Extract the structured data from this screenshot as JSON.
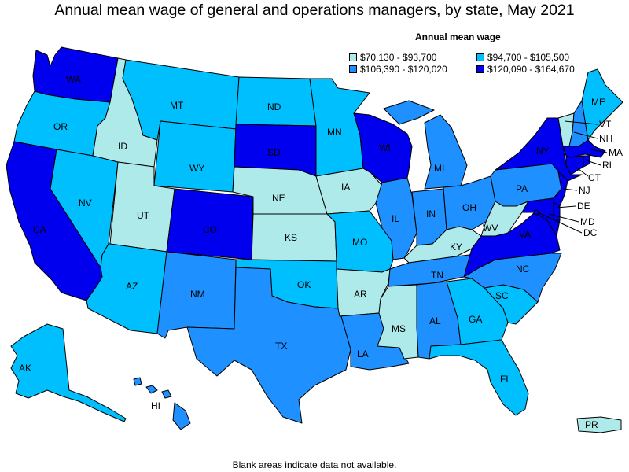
{
  "title": "Annual mean wage of general and operations managers, by state, May 2021",
  "legend": {
    "title": "Annual mean wage",
    "items": [
      {
        "label": "$70,130 - $93,700",
        "color": "#aeeaea"
      },
      {
        "label": "$94,700 - $105,500",
        "color": "#00bfff"
      },
      {
        "label": "$106,390 - $120,020",
        "color": "#1e90ff"
      },
      {
        "label": "$120,090 - $164,670",
        "color": "#0000ee"
      }
    ]
  },
  "footnote": "Blank areas indicate data not available.",
  "states": {
    "WA": {
      "label": "WA",
      "bin": 3
    },
    "OR": {
      "label": "OR",
      "bin": 1
    },
    "CA": {
      "label": "CA",
      "bin": 3
    },
    "ID": {
      "label": "ID",
      "bin": 0
    },
    "NV": {
      "label": "NV",
      "bin": 1
    },
    "MT": {
      "label": "MT",
      "bin": 1
    },
    "WY": {
      "label": "WY",
      "bin": 1
    },
    "UT": {
      "label": "UT",
      "bin": 0
    },
    "AZ": {
      "label": "AZ",
      "bin": 1
    },
    "CO": {
      "label": "CO",
      "bin": 3
    },
    "NM": {
      "label": "NM",
      "bin": 2
    },
    "ND": {
      "label": "ND",
      "bin": 1
    },
    "SD": {
      "label": "SD",
      "bin": 3
    },
    "NE": {
      "label": "NE",
      "bin": 0
    },
    "KS": {
      "label": "KS",
      "bin": 0
    },
    "OK": {
      "label": "OK",
      "bin": 1
    },
    "TX": {
      "label": "TX",
      "bin": 2
    },
    "MN": {
      "label": "MN",
      "bin": 1
    },
    "IA": {
      "label": "IA",
      "bin": 0
    },
    "MO": {
      "label": "MO",
      "bin": 1
    },
    "AR": {
      "label": "AR",
      "bin": 0
    },
    "LA": {
      "label": "LA",
      "bin": 2
    },
    "WI": {
      "label": "WI",
      "bin": 3
    },
    "IL": {
      "label": "IL",
      "bin": 2
    },
    "MI": {
      "label": "MI",
      "bin": 2
    },
    "IN": {
      "label": "IN",
      "bin": 2
    },
    "OH": {
      "label": "OH",
      "bin": 2
    },
    "KY": {
      "label": "KY",
      "bin": 0
    },
    "TN": {
      "label": "TN",
      "bin": 2
    },
    "MS": {
      "label": "MS",
      "bin": 0
    },
    "AL": {
      "label": "AL",
      "bin": 2
    },
    "GA": {
      "label": "GA",
      "bin": 1
    },
    "FL": {
      "label": "FL",
      "bin": 1
    },
    "SC": {
      "label": "SC",
      "bin": 1
    },
    "NC": {
      "label": "NC",
      "bin": 2
    },
    "VA": {
      "label": "VA",
      "bin": 3
    },
    "WV": {
      "label": "WV",
      "bin": 0
    },
    "PA": {
      "label": "PA",
      "bin": 2
    },
    "NY": {
      "label": "NY",
      "bin": 3
    },
    "VT": {
      "label": "VT",
      "bin": 0
    },
    "NH": {
      "label": "NH",
      "bin": 2
    },
    "ME": {
      "label": "ME",
      "bin": 1
    },
    "MA": {
      "label": "MA",
      "bin": 3
    },
    "RI": {
      "label": "RI",
      "bin": 3
    },
    "CT": {
      "label": "CT",
      "bin": 3
    },
    "NJ": {
      "label": "NJ",
      "bin": 3
    },
    "DE": {
      "label": "DE",
      "bin": 3
    },
    "MD": {
      "label": "MD",
      "bin": 3
    },
    "DC": {
      "label": "DC",
      "bin": 3
    },
    "AK": {
      "label": "AK",
      "bin": 1
    },
    "HI": {
      "label": "HI",
      "bin": 2
    },
    "PR": {
      "label": "PR",
      "bin": 0
    }
  }
}
